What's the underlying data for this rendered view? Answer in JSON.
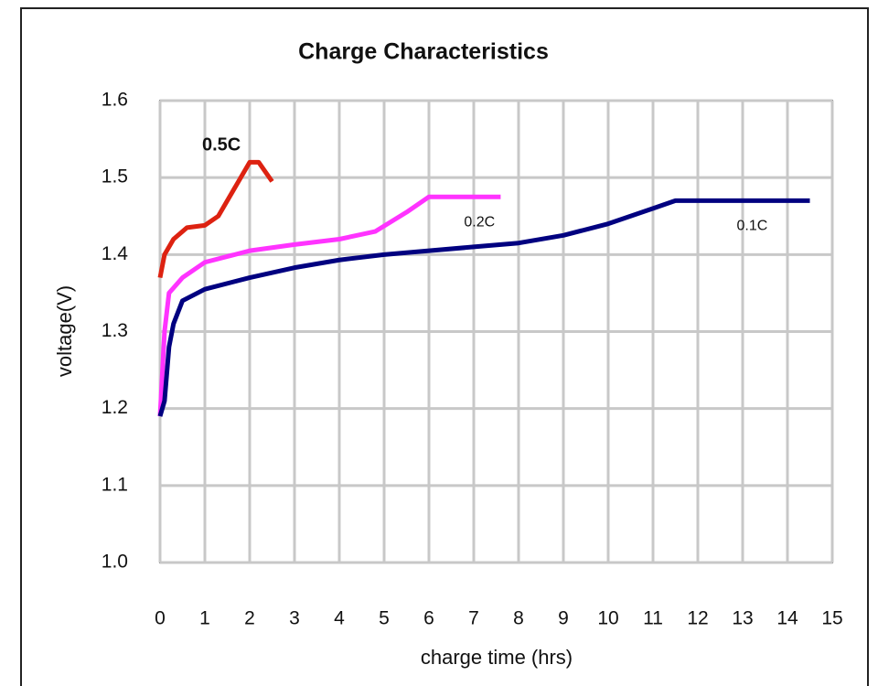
{
  "chart_data": {
    "type": "line",
    "title": "Charge Characteristics",
    "x_label": "charge time (hrs)",
    "y_label": "voltage(V)",
    "xlim": [
      0,
      15
    ],
    "xticks": [
      0,
      1,
      2,
      3,
      4,
      5,
      6,
      7,
      8,
      9,
      10,
      11,
      12,
      13,
      14,
      15
    ],
    "ylim": [
      1,
      1.6
    ],
    "yticks": [
      {
        "value": 1,
        "label": "1.0"
      },
      1.1,
      1.2,
      1.3,
      1.4,
      1.5,
      1.6
    ],
    "grid": true,
    "series": [
      {
        "name": "0.5C",
        "color": "#dd2211",
        "x": [
          0,
          0.1,
          0.3,
          0.6,
          1,
          1.3,
          1.7,
          2,
          2.2,
          2.5
        ],
        "values": [
          1.37,
          1.4,
          1.42,
          1.435,
          1.438,
          1.45,
          1.49,
          1.52,
          1.52,
          1.495
        ]
      },
      {
        "name": "0.2C",
        "color": "#ff33ff",
        "x": [
          0,
          0.1,
          0.2,
          0.5,
          1,
          2,
          3,
          4,
          4.8,
          5.5,
          6,
          7,
          7.6
        ],
        "values": [
          1.19,
          1.3,
          1.35,
          1.37,
          1.39,
          1.405,
          1.413,
          1.42,
          1.43,
          1.455,
          1.475,
          1.475,
          1.475
        ]
      },
      {
        "name": "0.1C",
        "color": "#000080",
        "x": [
          0,
          0.1,
          0.2,
          0.3,
          0.5,
          1,
          2,
          3,
          4,
          5,
          6,
          7,
          8,
          9,
          10,
          11,
          11.5,
          12,
          13,
          14,
          14.5
        ],
        "values": [
          1.19,
          1.21,
          1.28,
          1.31,
          1.34,
          1.355,
          1.37,
          1.383,
          1.393,
          1.4,
          1.405,
          1.41,
          1.415,
          1.425,
          1.44,
          1.46,
          1.47,
          1.47,
          1.47,
          1.47,
          1.47
        ]
      }
    ]
  }
}
